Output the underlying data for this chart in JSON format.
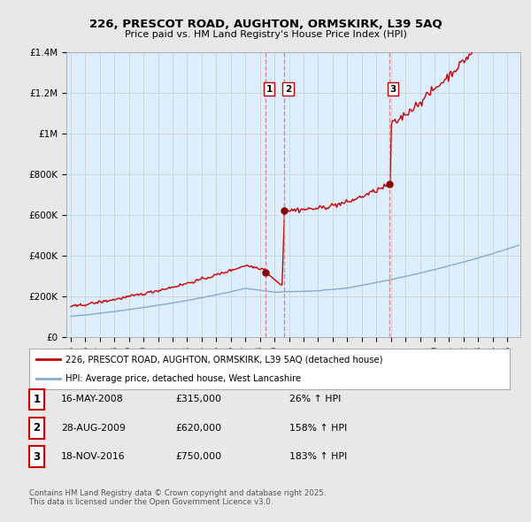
{
  "title": "226, PRESCOT ROAD, AUGHTON, ORMSKIRK, L39 5AQ",
  "subtitle": "Price paid vs. HM Land Registry's House Price Index (HPI)",
  "ylim": [
    0,
    1400000
  ],
  "yticks": [
    0,
    200000,
    400000,
    600000,
    800000,
    1000000,
    1200000,
    1400000
  ],
  "ytick_labels": [
    "£0",
    "£200K",
    "£400K",
    "£600K",
    "£800K",
    "£1M",
    "£1.2M",
    "£1.4M"
  ],
  "red_line_color": "#cc0000",
  "blue_line_color": "#88aacc",
  "marker_color": "#880000",
  "vline_color": "#dd8888",
  "shade_color": "#ddeeff",
  "sales": [
    {
      "date_num": 2008.37,
      "price": 315000,
      "label": "1",
      "date_str": "16-MAY-2008",
      "pct": "26% ↑ HPI"
    },
    {
      "date_num": 2009.66,
      "price": 620000,
      "label": "2",
      "date_str": "28-AUG-2009",
      "pct": "158% ↑ HPI"
    },
    {
      "date_num": 2016.88,
      "price": 750000,
      "label": "3",
      "date_str": "18-NOV-2016",
      "pct": "183% ↑ HPI"
    }
  ],
  "legend_line1": "226, PRESCOT ROAD, AUGHTON, ORMSKIRK, L39 5AQ (detached house)",
  "legend_line2": "HPI: Average price, detached house, West Lancashire",
  "table_rows": [
    {
      "num": "1",
      "date": "16-MAY-2008",
      "price": "£315,000",
      "pct": "26% ↑ HPI"
    },
    {
      "num": "2",
      "date": "28-AUG-2009",
      "price": "£620,000",
      "pct": "158% ↑ HPI"
    },
    {
      "num": "3",
      "date": "18-NOV-2016",
      "price": "£750,000",
      "pct": "183% ↑ HPI"
    }
  ],
  "footer": "Contains HM Land Registry data © Crown copyright and database right 2025.\nThis data is licensed under the Open Government Licence v3.0.",
  "background_color": "#e8e8e8",
  "plot_bg_color": "#ddeeff"
}
